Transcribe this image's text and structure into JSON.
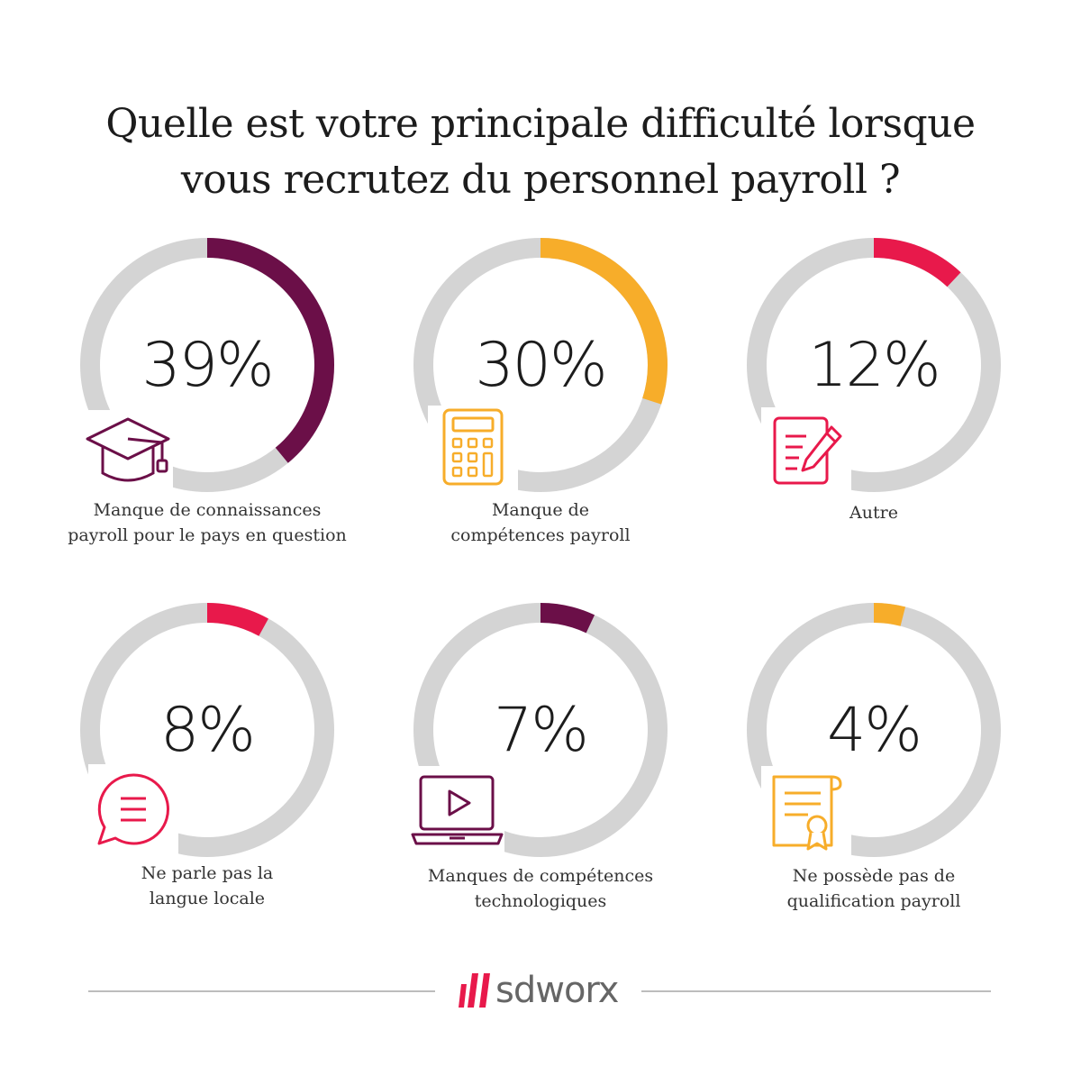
{
  "title": {
    "line1": "Quelle est votre principale difficulté lorsque",
    "line2": "vous recrutez du personnel payroll ?"
  },
  "chart_data": {
    "type": "donut",
    "title": "Quelle est votre principale difficulté lorsque vous recrutez du personnel payroll ?",
    "unit": "%",
    "items": [
      {
        "value": 39,
        "label": "39%",
        "category_lines": [
          "Manque de connaissances",
          "payroll pour le pays en question"
        ],
        "color": "#6b0f48",
        "icon": "graduation-cap-icon"
      },
      {
        "value": 30,
        "label": "30%",
        "category_lines": [
          "Manque de",
          "compétences payroll"
        ],
        "color": "#f7ad2a",
        "icon": "calculator-icon"
      },
      {
        "value": 12,
        "label": "12%",
        "category_lines": [
          "Autre"
        ],
        "color": "#e8194b",
        "icon": "document-pen-icon"
      },
      {
        "value": 8,
        "label": "8%",
        "category_lines": [
          "Ne parle pas la",
          "langue locale"
        ],
        "color": "#e8194b",
        "icon": "speech-bubble-icon"
      },
      {
        "value": 7,
        "label": "7%",
        "category_lines": [
          "Manques de compétences",
          "technologiques"
        ],
        "color": "#6b0f48",
        "icon": "laptop-video-icon"
      },
      {
        "value": 4,
        "label": "4%",
        "category_lines": [
          "Ne possède pas de",
          "qualification payroll"
        ],
        "color": "#f7ad2a",
        "icon": "certificate-icon"
      }
    ],
    "track_color": "#d4d4d4"
  },
  "footer": {
    "brand": "sdworx",
    "brand_color": "#666666",
    "accent_color": "#e8194b"
  }
}
